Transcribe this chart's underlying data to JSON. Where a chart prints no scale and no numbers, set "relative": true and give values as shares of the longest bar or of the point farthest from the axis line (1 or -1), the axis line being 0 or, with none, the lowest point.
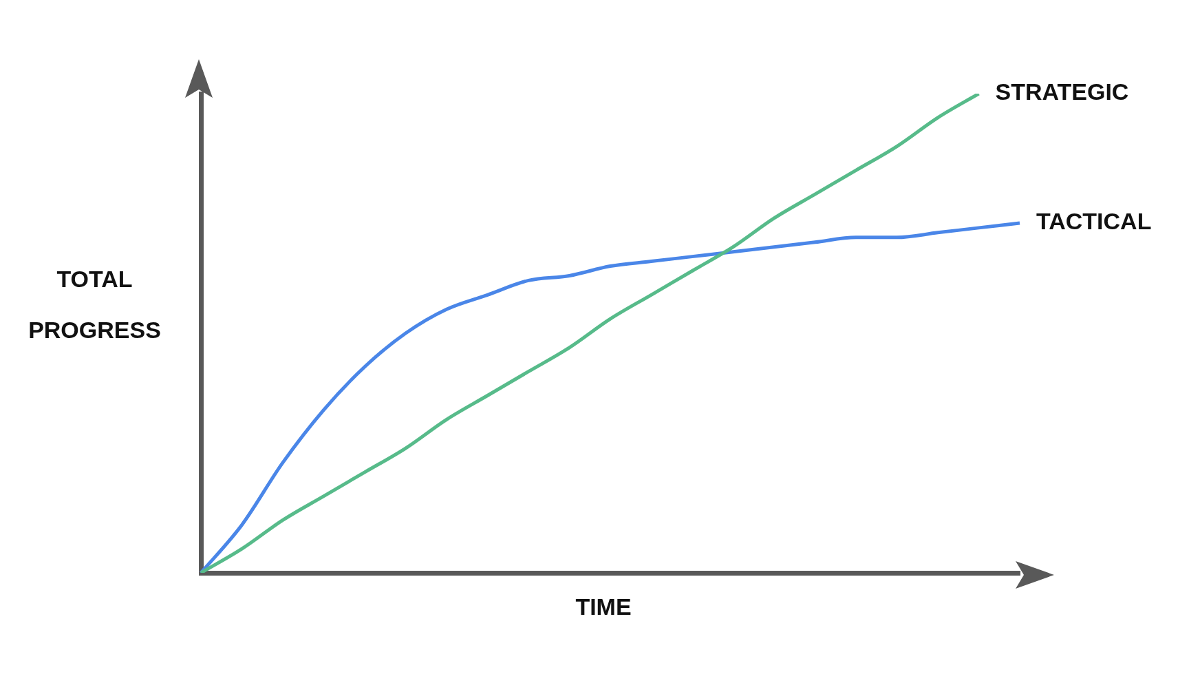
{
  "chart_data": {
    "type": "line",
    "relative": true,
    "xlabel": "TIME",
    "ylabel": "TOTAL PROGRESS",
    "legend": false,
    "grid": false,
    "tick_labels": false,
    "marker": "none",
    "line_style": "solid",
    "categories": [
      null,
      null,
      null,
      null,
      null,
      null,
      null,
      null,
      null,
      null,
      null,
      null,
      null,
      null,
      null,
      null,
      null,
      null,
      null,
      null,
      null
    ],
    "series": [
      {
        "name": "STRATEGIC",
        "color": "#57bb8a",
        "values": [
          0,
          0.05,
          0.11,
          0.16,
          0.21,
          0.26,
          0.32,
          0.37,
          0.42,
          0.47,
          0.53,
          0.58,
          0.63,
          0.68,
          0.74,
          0.79,
          0.84,
          0.89,
          0.95,
          1,
          null
        ]
      },
      {
        "name": "TACTICAL",
        "color": "#4a86e8",
        "values": [
          0,
          0.1,
          0.23,
          0.34,
          0.43,
          0.5,
          0.55,
          0.58,
          0.61,
          0.62,
          0.64,
          0.65,
          0.66,
          0.67,
          0.68,
          0.69,
          0.7,
          0.7,
          0.71,
          0.72,
          0.73
        ]
      }
    ]
  }
}
